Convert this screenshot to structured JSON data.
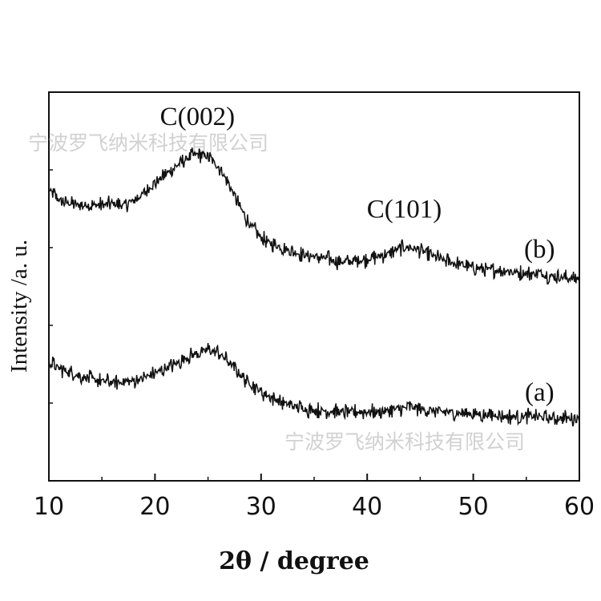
{
  "chart_data": {
    "type": "line",
    "title": "",
    "xlabel": "2θ / degree",
    "ylabel": "Intensity /a. u.",
    "xlim": [
      10,
      60
    ],
    "xticks": [
      10,
      20,
      30,
      40,
      50,
      60
    ],
    "y_ticks_labeled": false,
    "grid": false,
    "legend": "none",
    "annotations": [
      {
        "text": "C(002)",
        "x": 24,
        "series": "(b)"
      },
      {
        "text": "C(101)",
        "x": 43.5,
        "series": "(b)"
      }
    ],
    "series": [
      {
        "name": "(b)",
        "x": [
          10,
          11,
          12,
          13,
          14,
          15,
          16,
          17,
          18,
          19,
          20,
          21,
          22,
          23,
          24,
          25,
          26,
          27,
          28,
          29,
          30,
          31,
          32,
          33,
          34,
          35,
          36,
          37,
          38,
          39,
          40,
          41,
          42,
          43,
          44,
          45,
          46,
          47,
          48,
          49,
          50,
          51,
          52,
          53,
          54,
          55,
          56,
          57,
          58,
          59,
          60
        ],
        "y": [
          0.885,
          0.85,
          0.84,
          0.835,
          0.835,
          0.835,
          0.84,
          0.835,
          0.85,
          0.875,
          0.905,
          0.935,
          0.96,
          0.985,
          1.0,
          0.99,
          0.96,
          0.9,
          0.83,
          0.77,
          0.73,
          0.71,
          0.7,
          0.685,
          0.675,
          0.67,
          0.665,
          0.655,
          0.65,
          0.655,
          0.66,
          0.67,
          0.68,
          0.695,
          0.7,
          0.69,
          0.675,
          0.66,
          0.65,
          0.645,
          0.635,
          0.63,
          0.625,
          0.625,
          0.62,
          0.615,
          0.615,
          0.61,
          0.605,
          0.6,
          0.6
        ]
      },
      {
        "name": "(a)",
        "x": [
          10,
          11,
          12,
          13,
          14,
          15,
          16,
          17,
          18,
          19,
          20,
          21,
          22,
          23,
          24,
          25,
          26,
          27,
          28,
          29,
          30,
          31,
          32,
          33,
          34,
          35,
          36,
          37,
          38,
          39,
          40,
          41,
          42,
          43,
          44,
          45,
          46,
          47,
          48,
          49,
          50,
          51,
          52,
          53,
          54,
          55,
          56,
          57,
          58,
          59,
          60
        ],
        "y": [
          0.33,
          0.31,
          0.295,
          0.285,
          0.275,
          0.27,
          0.265,
          0.265,
          0.27,
          0.28,
          0.295,
          0.31,
          0.325,
          0.345,
          0.36,
          0.37,
          0.36,
          0.33,
          0.29,
          0.26,
          0.235,
          0.215,
          0.2,
          0.19,
          0.18,
          0.175,
          0.175,
          0.17,
          0.17,
          0.17,
          0.17,
          0.17,
          0.175,
          0.18,
          0.185,
          0.18,
          0.175,
          0.17,
          0.17,
          0.165,
          0.165,
          0.16,
          0.16,
          0.155,
          0.155,
          0.155,
          0.155,
          0.15,
          0.15,
          0.15,
          0.15
        ]
      }
    ],
    "series_labels": [
      {
        "text": "(b)",
        "x": 57,
        "series": "(b)"
      },
      {
        "text": "(a)",
        "x": 57,
        "series": "(a)"
      }
    ],
    "noise_amplitude": 0.018,
    "line_color": "#111111"
  },
  "watermarks": [
    "宁波罗飞纳米科技有限公司",
    "宁波罗飞纳米科技有限公司"
  ]
}
